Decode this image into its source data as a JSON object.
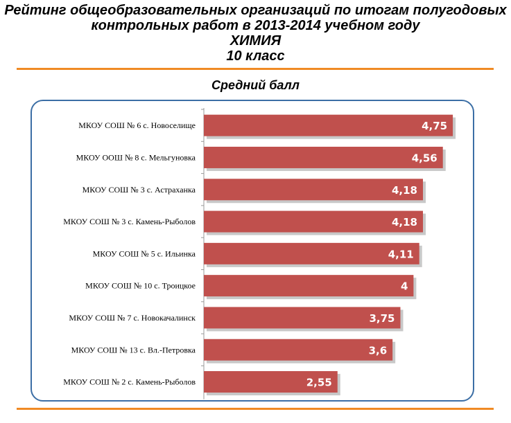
{
  "header": {
    "title_line1": "Рейтинг общеобразовательных  организаций  по итогам полугодовых",
    "title_line2": "контрольных работ в 2013-2014 учебном году",
    "subject": "ХИМИЯ",
    "grade": "10 класс"
  },
  "colors": {
    "bar": "#c0504d",
    "bar_shadow": "#9a9a9a",
    "rule": "#f08a24",
    "frame": "#3b6ea5",
    "axis": "#9a9a9a",
    "value_label": "#ffffff"
  },
  "chart_data": {
    "type": "bar",
    "orientation": "horizontal",
    "title": "Средний балл",
    "categories": [
      "МКОУ СОШ № 6 с. Новоселище",
      "МКОУ ООШ № 8 с. Мельгуновка",
      "МКОУ СОШ № 3 с. Астраханка",
      "МКОУ СОШ № 3 с. Камень-Рыболов",
      "МКОУ СОШ № 5 с. Ильинка",
      "МКОУ СОШ № 10 с. Троицкое",
      "МКОУ СОШ № 7 с. Новокачалинск",
      "МКОУ СОШ № 13 с. Вл.-Петровка",
      "МКОУ СОШ № 2 с. Камень-Рыболов"
    ],
    "values": [
      4.75,
      4.56,
      4.18,
      4.18,
      4.11,
      4,
      3.75,
      3.6,
      2.55
    ],
    "value_labels": [
      "4,75",
      "4,56",
      "4,18",
      "4,18",
      "4,11",
      "4",
      "3,75",
      "3,6",
      "2,55"
    ],
    "xlim": [
      0,
      5
    ],
    "grid": false,
    "legend": "none"
  }
}
